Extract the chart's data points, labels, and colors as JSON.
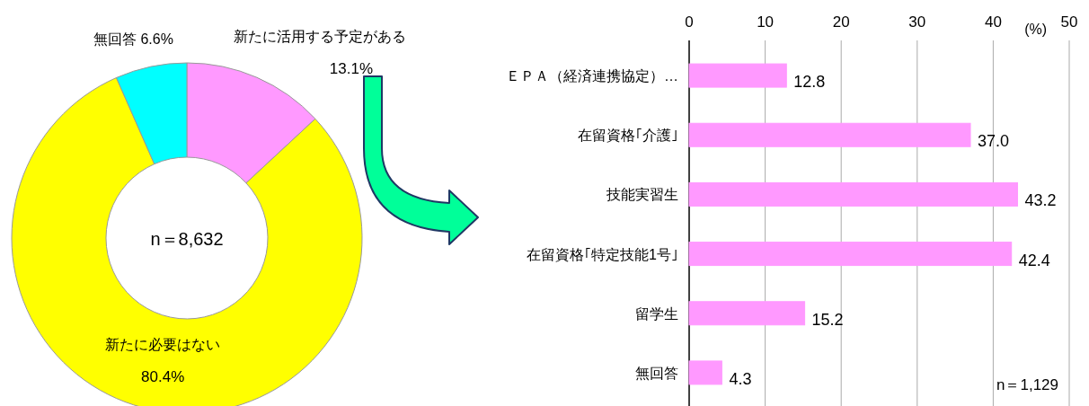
{
  "chart_data": [
    {
      "type": "donut",
      "categories": [
        "新たに活用する予定がある",
        "新たに必要はない",
        "無回答"
      ],
      "values": [
        13.1,
        80.4,
        6.6
      ],
      "colors": [
        "#ff99ff",
        "#ffff00",
        "#00ffff"
      ],
      "value_labels": [
        "13.1%",
        "80.4%",
        "6.6%"
      ],
      "annotations": [
        "n＝8,632"
      ]
    },
    {
      "type": "bar",
      "orientation": "horizontal",
      "categories": [
        "ＥＰＡ（経済連携協定）…",
        "在留資格｢介護｣",
        "技能実習生",
        "在留資格｢特定技能1号｣",
        "留学生",
        "無回答"
      ],
      "values": [
        12.8,
        37.0,
        43.2,
        42.4,
        15.2,
        4.3
      ],
      "color": "#ff99ff",
      "value_labels": [
        "12.8",
        "37.0",
        "43.2",
        "42.4",
        "15.2",
        "4.3"
      ],
      "xlim": [
        0,
        50
      ],
      "xticks": [
        0,
        10,
        20,
        30,
        40,
        50
      ],
      "xlabel": "(%)",
      "grid": "x",
      "annotations": [
        "n＝1,129"
      ]
    }
  ]
}
